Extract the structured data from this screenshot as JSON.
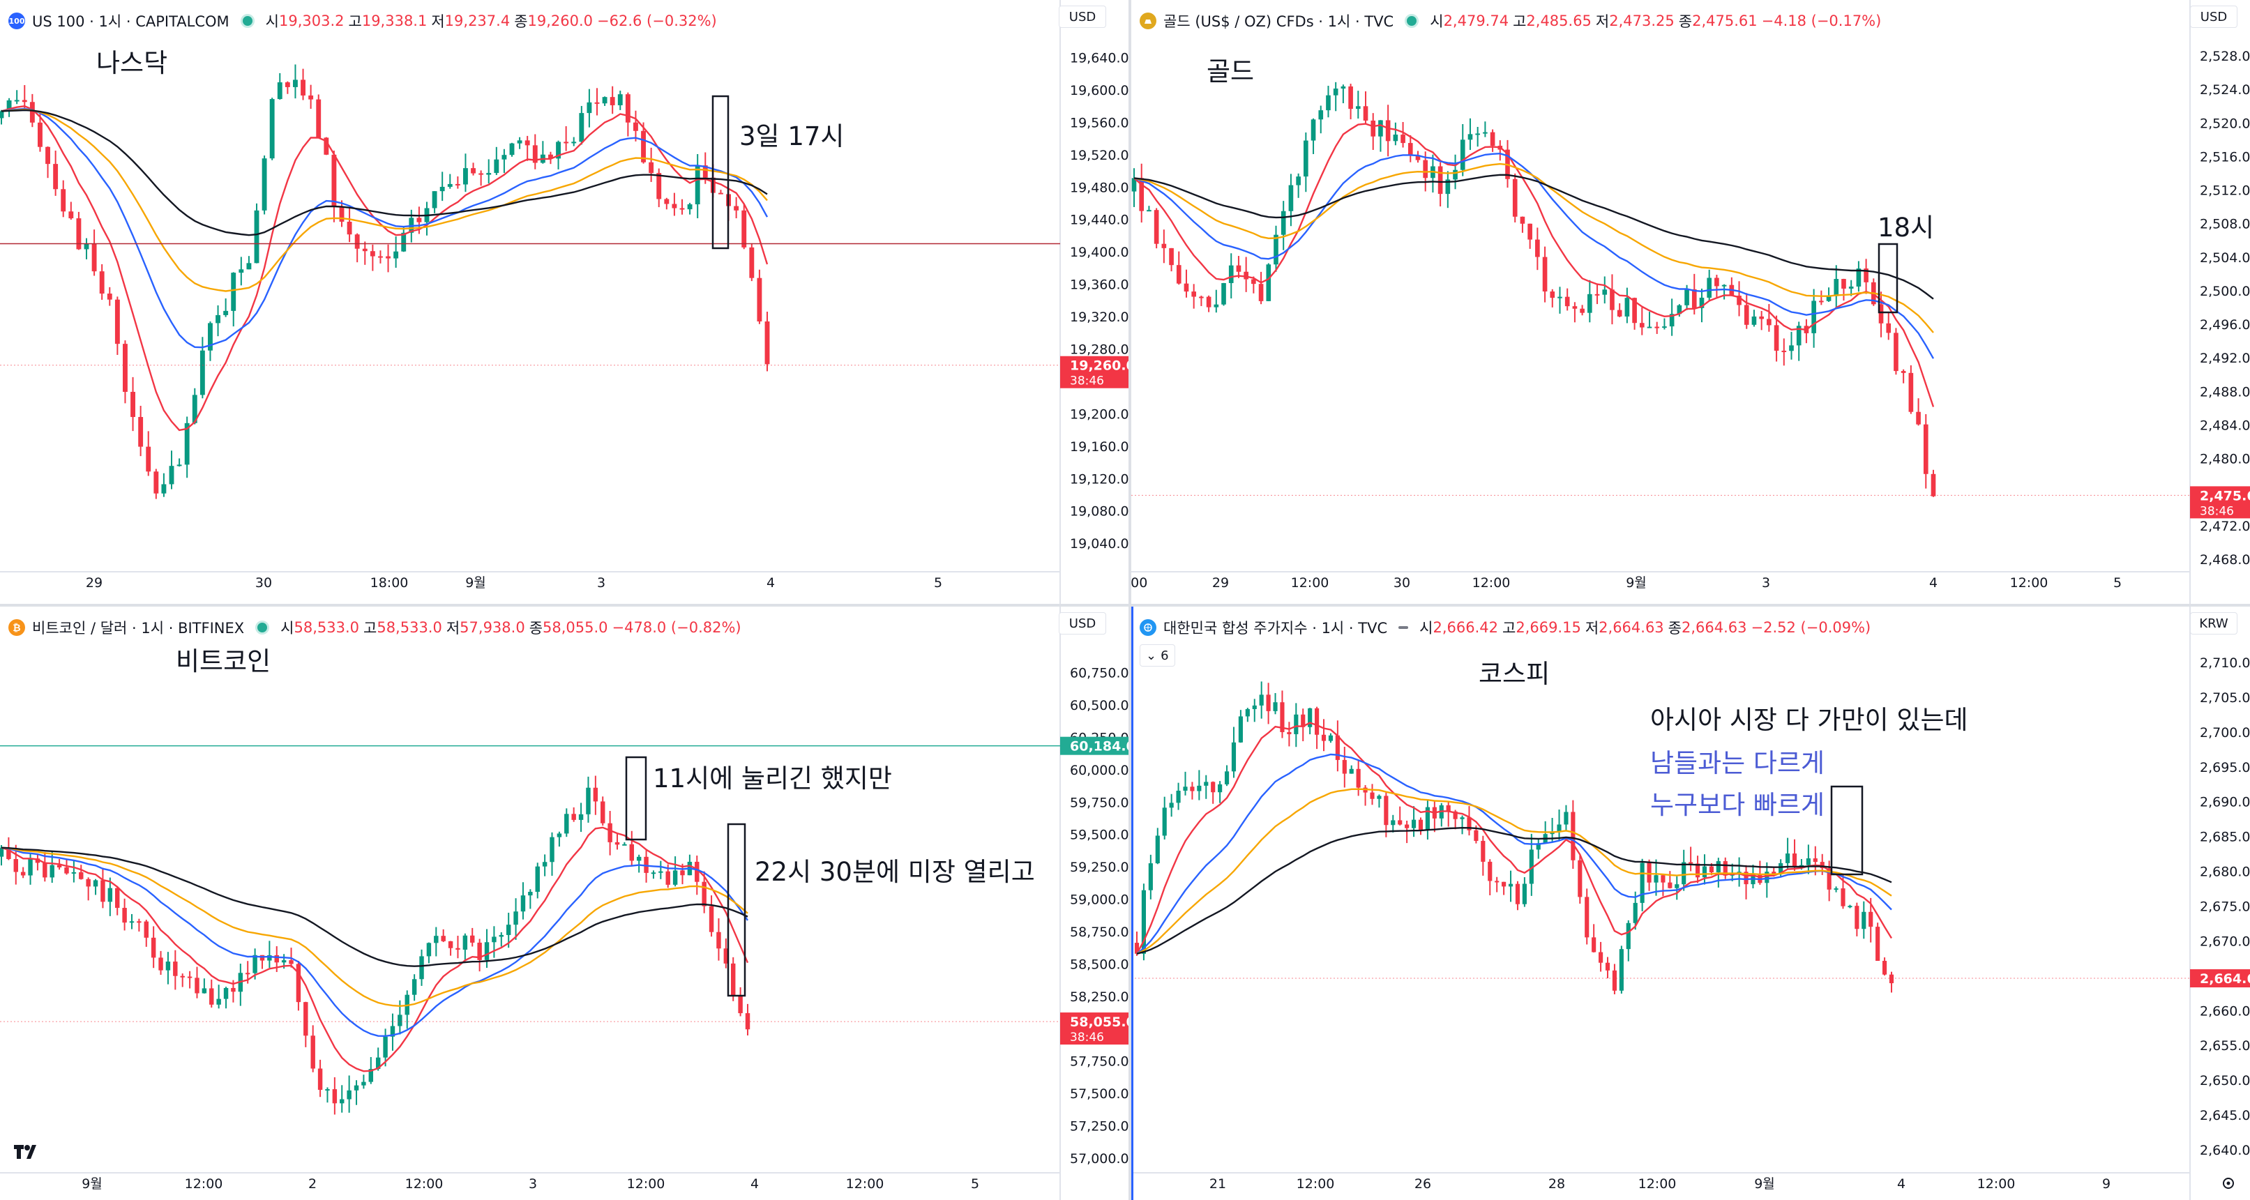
{
  "panes": [
    {
      "id": "nasdaq",
      "symbol_title": "US 100 · 1시 · CAPITALCOM",
      "icon_text": "100",
      "icon_color": "#2962ff",
      "ohlc": {
        "o_label": "시",
        "o": "19,303.2",
        "h_label": "고",
        "h": "19,338.1",
        "l_label": "저",
        "l": "19,237.4",
        "c_label": "종",
        "c": "19,260.0",
        "change": "−62.6 (−0.32%)"
      },
      "currency": "USD",
      "annotations": [
        {
          "text": "나스닥",
          "color": "#131722"
        },
        {
          "text": "3일 17시",
          "color": "#131722"
        }
      ],
      "price_labels": [
        "19,640.0",
        "19,600.0",
        "19,560.0",
        "19,520.0",
        "19,480.0",
        "19,440.0",
        "19,400.0",
        "19,360.0",
        "19,320.0",
        "19,280.0",
        "19,200.0",
        "19,160.0",
        "19,120.0",
        "19,080.0",
        "19,040.0"
      ],
      "price_values": [
        19640,
        19600,
        19560,
        19520,
        19480,
        19440,
        19400,
        19360,
        19320,
        19280,
        19200,
        19160,
        19120,
        19080,
        19040
      ],
      "price_range": [
        19010,
        19668
      ],
      "current_price": "19,260.0",
      "current_value": 19260,
      "countdown": "38:46",
      "red_line_value": 19410,
      "time_labels": [
        "29",
        "30",
        "18:00",
        "9월",
        "3",
        "4",
        "5"
      ]
    },
    {
      "id": "gold",
      "symbol_title": "골드 (US$ / OZ) CFDs · 1시 · TVC",
      "icon_text": "",
      "icon_color": "#e0a81e",
      "ohlc": {
        "o_label": "시",
        "o": "2,479.74",
        "h_label": "고",
        "h": "2,485.65",
        "l_label": "저",
        "l": "2,473.25",
        "c_label": "종",
        "c": "2,475.61",
        "change": "−4.18 (−0.17%)"
      },
      "currency": "USD",
      "annotations": [
        {
          "text": "골드",
          "color": "#131722"
        },
        {
          "text": "18시",
          "color": "#131722"
        }
      ],
      "price_labels": [
        "2,528.00",
        "2,524.00",
        "2,520.00",
        "2,516.00",
        "2,512.00",
        "2,508.00",
        "2,504.00",
        "2,500.00",
        "2,496.00",
        "2,492.00",
        "2,488.00",
        "2,484.00",
        "2,480.00",
        "2,472.00",
        "2,468.00"
      ],
      "price_values": [
        2528,
        2524,
        2520,
        2516,
        2512,
        2508,
        2504,
        2500,
        2496,
        2492,
        2488,
        2484,
        2480,
        2472,
        2468
      ],
      "price_range": [
        2467,
        2530.5
      ],
      "current_price": "2,475.61",
      "current_value": 2475.61,
      "countdown": "38:46",
      "red_line_value": null,
      "time_labels": [
        ":00",
        "29",
        "12:00",
        "30",
        "12:00",
        "9월",
        "3",
        "4",
        "12:00",
        "5"
      ]
    },
    {
      "id": "bitcoin",
      "symbol_title": "비트코인 / 달러 · 1시 · BITFINEX",
      "icon_text": "₿",
      "icon_color": "#f7931a",
      "ohlc": {
        "o_label": "시",
        "o": "58,533.0",
        "h_label": "고",
        "h": "58,533.0",
        "l_label": "저",
        "l": "57,938.0",
        "c_label": "종",
        "c": "58,055.0",
        "change": "−478.0 (−0.82%)"
      },
      "currency": "USD",
      "annotations": [
        {
          "text": "비트코인",
          "color": "#131722"
        },
        {
          "text": "11시에 눌리긴 했지만",
          "color": "#131722"
        },
        {
          "text": "22시 30분에 미장 열리고",
          "color": "#131722"
        }
      ],
      "price_labels": [
        "60,750.0",
        "60,500.0",
        "60,250.0",
        "60,000.0",
        "59,750.0",
        "59,500.0",
        "59,250.0",
        "59,000.0",
        "58,750.0",
        "58,500.0",
        "58,250.0",
        "57,750.0",
        "57,500.0",
        "57,250.0",
        "57,000.0"
      ],
      "price_values": [
        60750,
        60500,
        60250,
        60000,
        59750,
        59500,
        59250,
        59000,
        58750,
        58500,
        58250,
        57750,
        57500,
        57250,
        57000
      ],
      "price_range": [
        56930,
        60990
      ],
      "current_price": "58,055.0",
      "current_value": 58055,
      "countdown": "38:46",
      "green_line_price": "60,184.0",
      "green_line_value": 60184,
      "time_labels": [
        "9월",
        "12:00",
        "2",
        "12:00",
        "3",
        "12:00",
        "4",
        "12:00",
        "5"
      ]
    },
    {
      "id": "kospi",
      "symbol_title": "대한민국 합성 주가지수 · 1시 · TVC",
      "icon_text": "",
      "icon_color": "#2196f3",
      "ohlc": {
        "o_label": "시",
        "o": "2,666.42",
        "h_label": "고",
        "h": "2,669.15",
        "l_label": "저",
        "l": "2,664.63",
        "c_label": "종",
        "c": "2,664.63",
        "change": "−2.52 (−0.09%)"
      },
      "currency": "KRW",
      "sub_badge": "6",
      "annotations": [
        {
          "text": "코스피",
          "color": "#131722"
        },
        {
          "text": "아시아 시장 다 가만이 있는데",
          "color": "#131722"
        },
        {
          "text": "남들과는 다르게",
          "color": "#4b5bd4"
        },
        {
          "text": "누구보다 빠르게",
          "color": "#4b5bd4"
        }
      ],
      "price_labels": [
        "2,710.00",
        "2,705.00",
        "2,700.00",
        "2,695.00",
        "2,690.00",
        "2,685.00",
        "2,680.00",
        "2,675.00",
        "2,670.00",
        "2,660.00",
        "2,655.00",
        "2,650.00",
        "2,645.00",
        "2,640.00"
      ],
      "price_values": [
        2710,
        2705,
        2700,
        2695,
        2690,
        2685,
        2680,
        2675,
        2670,
        2660,
        2655,
        2650,
        2645,
        2640
      ],
      "price_range": [
        2637.5,
        2713
      ],
      "current_price": "2,664.63",
      "current_value": 2664.63,
      "time_labels": [
        "21",
        "12:00",
        "26",
        "28",
        "12:00",
        "9월",
        "4",
        "12:00",
        "9"
      ]
    }
  ],
  "chart_data": [
    {
      "type": "candlestick",
      "title": "US 100 · 1시 · CAPITALCOM",
      "x_labels": [
        "29",
        "30",
        "18:00",
        "9월",
        "3",
        "4",
        "5"
      ],
      "ylim": [
        19040,
        19640
      ],
      "last_close": 19260.0,
      "approx_path": [
        19560,
        19600,
        19520,
        19440,
        19380,
        19320,
        19160,
        19100,
        19140,
        19280,
        19340,
        19400,
        19580,
        19620,
        19560,
        19440,
        19400,
        19380,
        19420,
        19460,
        19500,
        19480,
        19520,
        19540,
        19520,
        19520,
        19580,
        19600,
        19560,
        19480,
        19440,
        19500,
        19480,
        19420,
        19260
      ]
    },
    {
      "type": "candlestick",
      "title": "골드 (US$ / OZ) CFDs · 1시 · TVC",
      "x_labels": [
        ":00",
        "29",
        "12:00",
        "30",
        "12:00",
        "9월",
        "3",
        "4",
        "12:00",
        "5"
      ],
      "ylim": [
        2468,
        2528
      ],
      "last_close": 2475.61,
      "approx_path": [
        2512,
        2506,
        2500,
        2498,
        2504,
        2500,
        2512,
        2520,
        2524,
        2520,
        2518,
        2516,
        2512,
        2520,
        2518,
        2508,
        2500,
        2496,
        2500,
        2498,
        2496,
        2498,
        2500,
        2500,
        2496,
        2494,
        2496,
        2500,
        2502,
        2496,
        2488,
        2476
      ]
    },
    {
      "type": "candlestick",
      "title": "비트코인 / 달러 · 1시 · BITFINEX",
      "x_labels": [
        "9월",
        "12:00",
        "2",
        "12:00",
        "3",
        "12:00",
        "4",
        "12:00",
        "5"
      ],
      "ylim": [
        57000,
        60750
      ],
      "last_close": 58055.0,
      "approx_path": [
        59300,
        59250,
        59200,
        59150,
        59000,
        58800,
        58500,
        58300,
        58200,
        58400,
        58600,
        58400,
        57500,
        57450,
        57700,
        58200,
        58600,
        58700,
        58550,
        58700,
        59200,
        59500,
        59800,
        59450,
        59300,
        59200,
        59250,
        58500,
        58055
      ]
    },
    {
      "type": "candlestick",
      "title": "대한민국 합성 주가지수 · 1시 · TVC",
      "x_labels": [
        "21",
        "12:00",
        "26",
        "28",
        "12:00",
        "9월",
        "4",
        "12:00",
        "9"
      ],
      "ylim": [
        2640,
        2710
      ],
      "last_close": 2664.63,
      "approx_path": [
        2670,
        2690,
        2694,
        2690,
        2700,
        2706,
        2700,
        2702,
        2696,
        2692,
        2688,
        2686,
        2690,
        2688,
        2680,
        2676,
        2684,
        2688,
        2668,
        2664,
        2680,
        2678,
        2680,
        2682,
        2680,
        2678,
        2682,
        2680,
        2676,
        2672,
        2664.63
      ]
    }
  ]
}
